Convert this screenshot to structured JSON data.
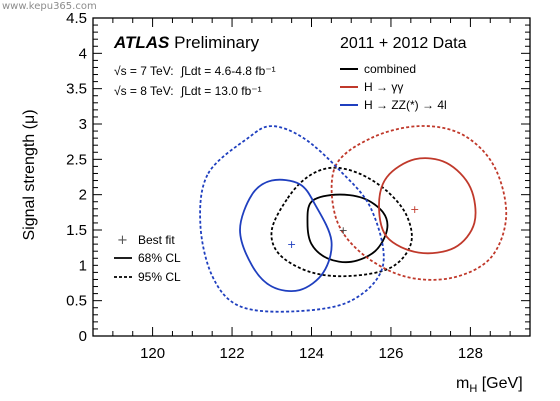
{
  "watermark": "www.kepu365.com",
  "chart_data": {
    "type": "scatter",
    "title": "ATLAS Preliminary",
    "subtitle": "2011 + 2012 Data",
    "xlabel": "m_H [GeV]",
    "ylabel": "Signal strength (μ)",
    "xlim": [
      118.5,
      129.5
    ],
    "ylim": [
      0,
      4.5
    ],
    "xticks": [
      120,
      122,
      124,
      126,
      128
    ],
    "yticks": [
      0,
      0.5,
      1,
      1.5,
      2,
      2.5,
      3,
      3.5,
      4,
      4.5
    ],
    "energy_lines": [
      {
        "sqrt_s": "√s = 7 TeV:",
        "lumi": "∫Ldt = 4.6-4.8 fb⁻¹"
      },
      {
        "sqrt_s": "√s = 8 TeV:",
        "lumi": "∫Ldt = 13.0 fb⁻¹"
      }
    ],
    "legend": [
      {
        "name": "combined",
        "color": "#000000"
      },
      {
        "name": "H → γγ",
        "color": "#c0392b"
      },
      {
        "name": "H → ZZ(*) → 4l",
        "color": "#1f3fbf"
      }
    ],
    "style_legend": [
      {
        "label": "Best fit",
        "kind": "marker"
      },
      {
        "label": "68% CL",
        "kind": "solid"
      },
      {
        "label": "95% CL",
        "kind": "dashed"
      }
    ],
    "series": [
      {
        "name": "combined",
        "color": "#000000",
        "best_fit": [
          124.8,
          1.5
        ],
        "cl68": [
          [
            124.0,
            1.9
          ],
          [
            124.6,
            2.0
          ],
          [
            125.3,
            1.95
          ],
          [
            125.8,
            1.75
          ],
          [
            125.9,
            1.5
          ],
          [
            125.6,
            1.2
          ],
          [
            125.0,
            1.05
          ],
          [
            124.4,
            1.1
          ],
          [
            124.0,
            1.3
          ],
          [
            123.9,
            1.6
          ]
        ],
        "cl95": [
          [
            123.4,
            1.95
          ],
          [
            123.9,
            2.25
          ],
          [
            124.5,
            2.38
          ],
          [
            125.2,
            2.3
          ],
          [
            125.9,
            2.05
          ],
          [
            126.4,
            1.7
          ],
          [
            126.5,
            1.3
          ],
          [
            126.0,
            0.97
          ],
          [
            125.0,
            0.85
          ],
          [
            124.0,
            0.9
          ],
          [
            123.2,
            1.15
          ],
          [
            123.0,
            1.5
          ]
        ]
      },
      {
        "name": "H → γγ",
        "color": "#c0392b",
        "best_fit": [
          126.6,
          1.8
        ],
        "cl68": [
          [
            125.9,
            2.25
          ],
          [
            126.6,
            2.5
          ],
          [
            127.4,
            2.45
          ],
          [
            128.0,
            2.1
          ],
          [
            128.1,
            1.6
          ],
          [
            127.6,
            1.25
          ],
          [
            126.7,
            1.18
          ],
          [
            125.9,
            1.4
          ],
          [
            125.7,
            1.85
          ]
        ],
        "cl95": [
          [
            124.6,
            2.4
          ],
          [
            125.5,
            2.8
          ],
          [
            126.7,
            2.97
          ],
          [
            127.8,
            2.85
          ],
          [
            128.6,
            2.4
          ],
          [
            128.9,
            1.7
          ],
          [
            128.5,
            1.1
          ],
          [
            127.5,
            0.82
          ],
          [
            126.3,
            0.85
          ],
          [
            125.2,
            1.2
          ],
          [
            124.6,
            1.7
          ]
        ]
      },
      {
        "name": "H → ZZ(*) → 4l",
        "color": "#1f3fbf",
        "best_fit": [
          123.5,
          1.3
        ],
        "cl68": [
          [
            122.5,
            2.0
          ],
          [
            123.0,
            2.2
          ],
          [
            123.7,
            2.15
          ],
          [
            124.1,
            1.85
          ],
          [
            124.5,
            1.35
          ],
          [
            124.3,
            0.9
          ],
          [
            123.7,
            0.65
          ],
          [
            123.0,
            0.7
          ],
          [
            122.5,
            1.0
          ],
          [
            122.2,
            1.5
          ]
        ],
        "cl95": [
          [
            121.4,
            2.3
          ],
          [
            122.4,
            2.8
          ],
          [
            123.0,
            2.97
          ],
          [
            123.8,
            2.8
          ],
          [
            124.7,
            2.35
          ],
          [
            125.5,
            1.8
          ],
          [
            125.8,
            1.0
          ],
          [
            125.0,
            0.5
          ],
          [
            123.6,
            0.35
          ],
          [
            122.2,
            0.42
          ],
          [
            121.5,
            0.85
          ],
          [
            121.2,
            1.6
          ]
        ]
      }
    ]
  }
}
